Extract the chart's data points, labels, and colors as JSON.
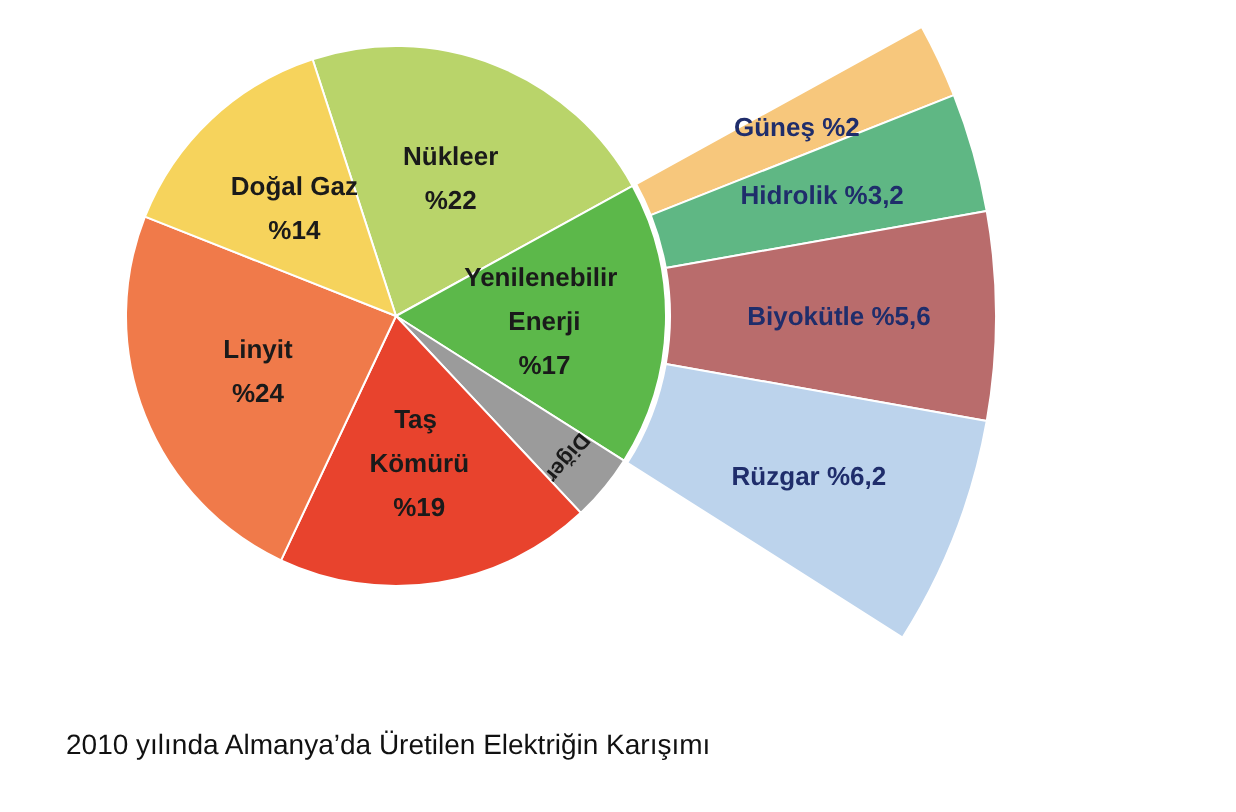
{
  "chart_data": [
    {
      "type": "pie",
      "title": "2010 yılında Almanya’da Üretilen Elektriğin Karışımı",
      "categories": [
        "Nükleer",
        "Yenilenebilir Enerji",
        "Diğer",
        "Taş Kömürü",
        "Linyit",
        "Doğal Gaz"
      ],
      "values": [
        22,
        17,
        4,
        19,
        24,
        14
      ],
      "value_labels": [
        "%22",
        "%17",
        null,
        "%19",
        "%24",
        "%14"
      ],
      "colors": [
        "#b9d46a",
        "#5cb84a",
        "#9b9b9b",
        "#e8432d",
        "#f07a4a",
        "#f6d35c"
      ]
    },
    {
      "type": "donut",
      "categories": [
        "Güneş",
        "Hidrolik",
        "Biyokütle",
        "Rüzgar"
      ],
      "values": [
        2,
        3.2,
        5.6,
        6.2
      ],
      "value_labels": [
        "%2",
        "%3,2",
        "%5,6",
        "%6,2"
      ],
      "colors": [
        "#f7c77c",
        "#5fb784",
        "#b96c6c",
        "#bcd3ec"
      ]
    }
  ]
}
